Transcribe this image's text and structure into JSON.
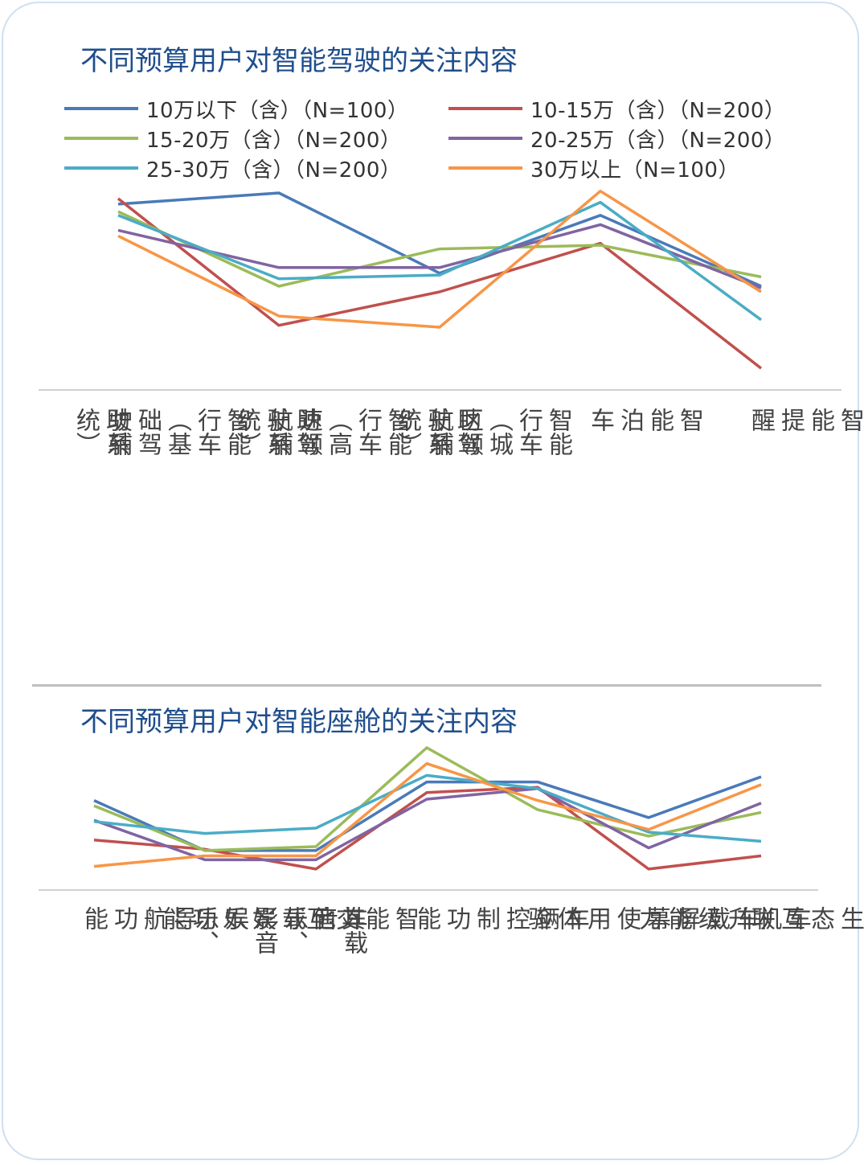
{
  "chart_data": [
    {
      "type": "line",
      "title": "不同预算用户对智能驾驶的关注内容",
      "categories": [
        "智能行车（基础驾驶辅助系统）",
        "智能行车（高速领航辅助驾驶系统）",
        "智能行车（城区领航辅助驾驶系统）",
        "智能泊车",
        "智能提醒"
      ],
      "label_columns": [
        [
          "智能行车（基础驾驶辅",
          "助系统）"
        ],
        [
          "智能行车（高速领航辅",
          "助驾驶系统）"
        ],
        [
          "智能行车（城区领航辅",
          "助驾驶系统）"
        ],
        [
          "智能泊车"
        ],
        [
          "智能提醒"
        ]
      ],
      "ylim": [
        0,
        100
      ],
      "yticks_visible": false,
      "series": [
        {
          "name": "10万以下（含）（N=100）",
          "color": "#4a7ab8",
          "values": [
            94,
            100,
            57,
            88,
            50
          ]
        },
        {
          "name": "10-15万（含）（N=200）",
          "color": "#c0504d",
          "values": [
            97,
            29,
            47,
            73,
            6
          ]
        },
        {
          "name": "15-20万（含）（N=200）",
          "color": "#9bbb59",
          "values": [
            90,
            50,
            70,
            72,
            55
          ]
        },
        {
          "name": "20-25万（含）（N=200）",
          "color": "#8064a2",
          "values": [
            80,
            60,
            60,
            83,
            49
          ]
        },
        {
          "name": "25-30万（含）（N=200）",
          "color": "#4bacc6",
          "values": [
            88,
            54,
            56,
            95,
            32
          ]
        },
        {
          "name": "30万以上（N=100）",
          "color": "#f79646",
          "values": [
            77,
            34,
            28,
            101,
            47
          ]
        }
      ]
    },
    {
      "type": "line",
      "title": "不同预算用户对智能座舱的关注内容",
      "categories": [
        "导航功能",
        "车载音乐、影音娱乐、其他载娱乐功能",
        "智能交互",
        "车辆控制功能",
        "车载屏幕使用体验",
        "车机升级能力",
        "车机生态互联"
      ],
      "label_columns": [
        [
          "导航功能"
        ],
        [
          "车载音乐、影音娱乐、",
          "其他载娱乐功能"
        ],
        [
          "智能交互"
        ],
        [
          "车辆控制功能"
        ],
        [
          "车载屏幕使用体验"
        ],
        [
          "车机升级能力"
        ],
        [
          "车机生态互联"
        ]
      ],
      "ylim": [
        0,
        100
      ],
      "yticks_visible": false,
      "series": [
        {
          "name": "10万以下（含）（N=100）",
          "color": "#4a7ab8",
          "values": [
            60,
            22,
            22,
            74,
            74,
            47,
            78
          ]
        },
        {
          "name": "10-15万（含）（N=200）",
          "color": "#c0504d",
          "values": [
            30,
            23,
            8,
            66,
            70,
            8,
            18
          ]
        },
        {
          "name": "15-20万（含）（N=200）",
          "color": "#9bbb59",
          "values": [
            56,
            22,
            25,
            100,
            53,
            33,
            51
          ]
        },
        {
          "name": "20-25万（含）（N=200）",
          "color": "#8064a2",
          "values": [
            45,
            15,
            15,
            61,
            69,
            24,
            58
          ]
        },
        {
          "name": "25-30万（含）（N=200）",
          "color": "#4bacc6",
          "values": [
            44,
            35,
            39,
            79,
            69,
            36,
            29
          ]
        },
        {
          "name": "30万以上（N=100）",
          "color": "#f79646",
          "values": [
            10,
            18,
            18,
            88,
            60,
            38,
            72
          ]
        }
      ]
    }
  ]
}
